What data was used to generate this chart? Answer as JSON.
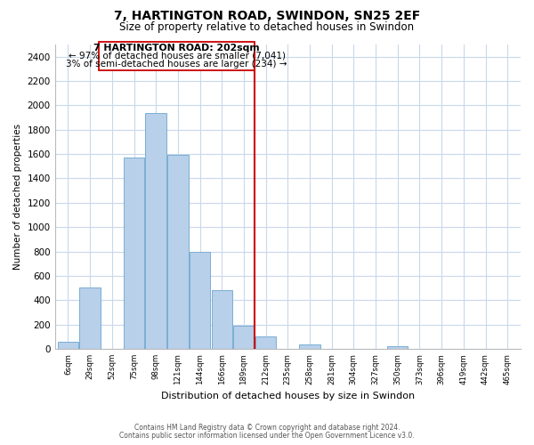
{
  "title": "7, HARTINGTON ROAD, SWINDON, SN25 2EF",
  "subtitle": "Size of property relative to detached houses in Swindon",
  "xlabel": "Distribution of detached houses by size in Swindon",
  "ylabel": "Number of detached properties",
  "bar_labels": [
    "6sqm",
    "29sqm",
    "52sqm",
    "75sqm",
    "98sqm",
    "121sqm",
    "144sqm",
    "166sqm",
    "189sqm",
    "212sqm",
    "235sqm",
    "258sqm",
    "281sqm",
    "304sqm",
    "327sqm",
    "350sqm",
    "373sqm",
    "396sqm",
    "419sqm",
    "442sqm",
    "465sqm"
  ],
  "bar_values": [
    55,
    505,
    0,
    1575,
    1940,
    1590,
    800,
    480,
    190,
    100,
    0,
    35,
    0,
    0,
    0,
    20,
    0,
    0,
    0,
    0,
    0
  ],
  "bar_color": "#b8d0ea",
  "bar_edge_color": "#7aaed4",
  "vline_x": 9.0,
  "vline_color": "#cc0000",
  "annotation_title": "7 HARTINGTON ROAD: 202sqm",
  "annotation_line1": "← 97% of detached houses are smaller (7,041)",
  "annotation_line2": "3% of semi-detached houses are larger (234) →",
  "ylim": [
    0,
    2500
  ],
  "yticks": [
    0,
    200,
    400,
    600,
    800,
    1000,
    1200,
    1400,
    1600,
    1800,
    2000,
    2200,
    2400
  ],
  "footnote1": "Contains HM Land Registry data © Crown copyright and database right 2024.",
  "footnote2": "Contains public sector information licensed under the Open Government Licence v3.0.",
  "bg_color": "#ffffff",
  "grid_color": "#c8d8ec"
}
